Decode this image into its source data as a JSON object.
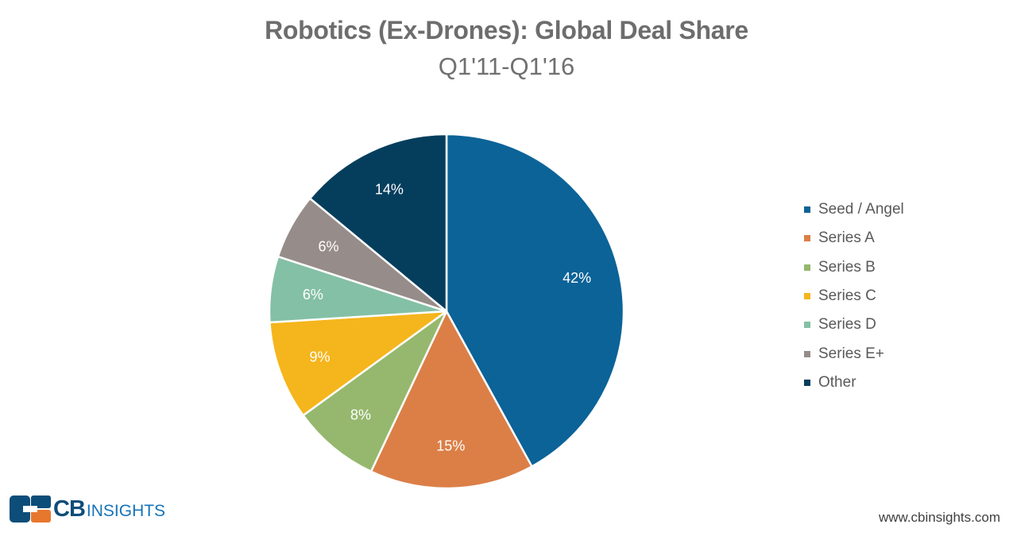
{
  "chart_data": {
    "type": "pie",
    "title": "Robotics (Ex-Drones): Global Deal Share",
    "subtitle": "Q1'11-Q1'16",
    "slices": [
      {
        "name": "Seed / Angel",
        "value": 42,
        "label": "42%",
        "color": "#0b6398"
      },
      {
        "name": "Series A",
        "value": 15,
        "label": "15%",
        "color": "#db7f47"
      },
      {
        "name": "Series B",
        "value": 8,
        "label": "8%",
        "color": "#95b86e"
      },
      {
        "name": "Series C",
        "value": 9,
        "label": "9%",
        "color": "#f5b51c"
      },
      {
        "name": "Series D",
        "value": 6,
        "label": "6%",
        "color": "#84c0a5"
      },
      {
        "name": "Series E+",
        "value": 6,
        "label": "6%",
        "color": "#968c89"
      },
      {
        "name": "Other",
        "value": 14,
        "label": "14%",
        "color": "#053e5d"
      }
    ],
    "legend_position": "right"
  },
  "footer": {
    "logo_cb": "CB",
    "logo_insights": "INSIGHTS",
    "website": "www.cbinsights.com"
  },
  "colors": {
    "logo_dark": "#0d4d7a",
    "logo_orange": "#e8772e",
    "logo_blue": "#1673b8"
  }
}
